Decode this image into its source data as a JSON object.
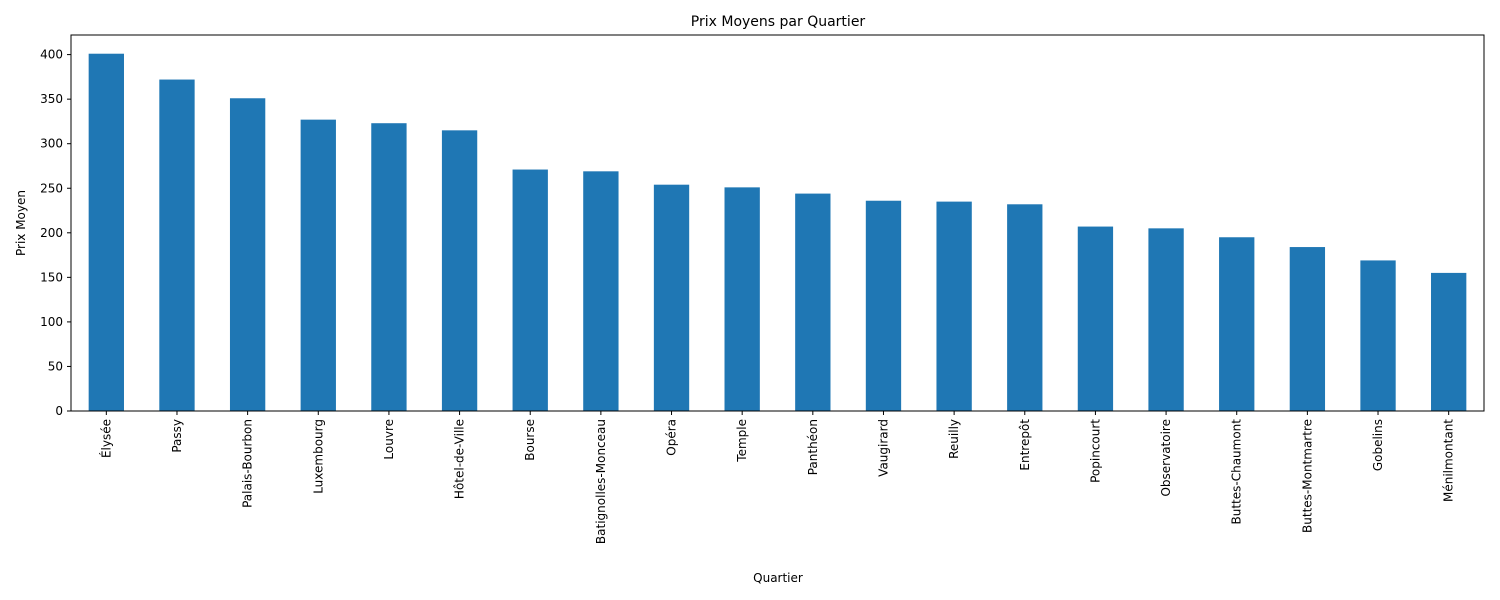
{
  "chart_data": {
    "type": "bar",
    "title": "Prix Moyens par Quartier",
    "xlabel": "Quartier",
    "ylabel": "Prix Moyen",
    "categories": [
      "Élysée",
      "Passy",
      "Palais-Bourbon",
      "Luxembourg",
      "Louvre",
      "Hôtel-de-Ville",
      "Bourse",
      "Batignolles-Monceau",
      "Opéra",
      "Temple",
      "Panthéon",
      "Vaugirard",
      "Reuilly",
      "Entrepôt",
      "Popincourt",
      "Observatoire",
      "Buttes-Chaumont",
      "Buttes-Montmartre",
      "Gobelins",
      "Ménilmontant"
    ],
    "values": [
      401,
      372,
      351,
      327,
      323,
      315,
      271,
      269,
      254,
      251,
      244,
      236,
      235,
      232,
      207,
      205,
      195,
      184,
      169,
      155
    ],
    "ylim": [
      0,
      422
    ],
    "yticks": [
      0,
      50,
      100,
      150,
      200,
      250,
      300,
      350,
      400
    ],
    "bar_color": "#1f77b4",
    "grid": false,
    "legend": "none"
  }
}
